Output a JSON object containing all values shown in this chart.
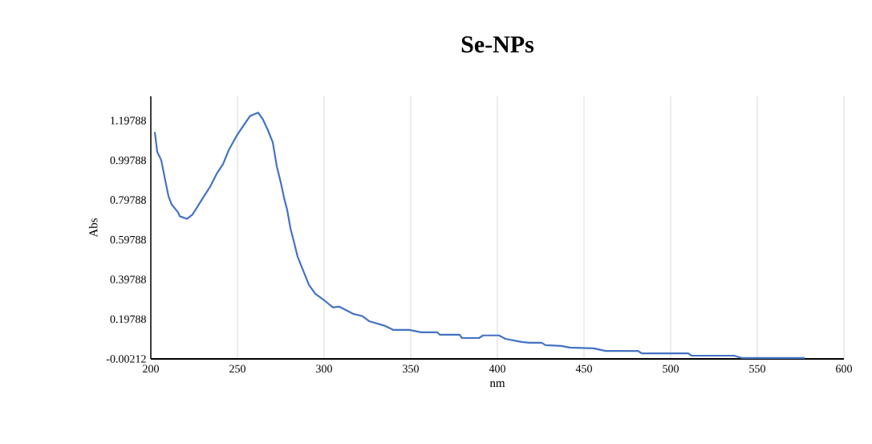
{
  "chart_data": {
    "type": "line",
    "title": "Se-NPs",
    "xlabel": "nm",
    "ylabel": "Abs",
    "xlim": [
      200,
      600
    ],
    "xticks": [
      200,
      250,
      300,
      350,
      400,
      450,
      500,
      550,
      600
    ],
    "ylim": [
      -0.00212,
      1.32
    ],
    "yticks": [
      -0.00212,
      0.19788,
      0.39788,
      0.59788,
      0.79788,
      0.99788,
      1.19788
    ],
    "grid": "x",
    "marker": "none",
    "line_style": "solid",
    "series": [
      {
        "color": "#4472c4",
        "x": [
          202.3,
          203.7,
          206,
          208.3,
          210.2,
          212,
          215.7,
          216.7,
          220.8,
          224,
          226.9,
          230.1,
          234.3,
          238,
          241.7,
          244.9,
          249.5,
          254.2,
          257.4,
          262,
          264.8,
          267.6,
          270.4,
          272.7,
          275,
          276.9,
          278.7,
          280.6,
          282.4,
          284.7,
          287.5,
          291.2,
          294.9,
          300.5,
          305.1,
          308.8,
          316.7,
          322.2,
          325.9,
          335.2,
          339.8,
          349.1,
          356,
          365.3,
          366.7,
          378.2,
          379.6,
          389.4,
          391.7,
          400.9,
          404.6,
          413.9,
          418.5,
          425.5,
          427.8,
          437,
          441.7,
          455.6,
          462.5,
          481,
          483.3,
          510.2,
          512,
          536.6,
          541.2,
          577.3
        ],
        "values": [
          1.141,
          1.04,
          0.999,
          0.898,
          0.817,
          0.776,
          0.736,
          0.716,
          0.703,
          0.724,
          0.764,
          0.809,
          0.866,
          0.93,
          0.979,
          1.048,
          1.121,
          1.182,
          1.222,
          1.238,
          1.202,
          1.149,
          1.088,
          0.967,
          0.886,
          0.809,
          0.748,
          0.655,
          0.594,
          0.513,
          0.452,
          0.371,
          0.326,
          0.29,
          0.257,
          0.261,
          0.225,
          0.213,
          0.188,
          0.164,
          0.144,
          0.144,
          0.132,
          0.132,
          0.12,
          0.12,
          0.103,
          0.103,
          0.116,
          0.116,
          0.099,
          0.083,
          0.079,
          0.079,
          0.067,
          0.063,
          0.055,
          0.051,
          0.038,
          0.038,
          0.026,
          0.026,
          0.014,
          0.014,
          0.002,
          0.002
        ]
      }
    ]
  }
}
